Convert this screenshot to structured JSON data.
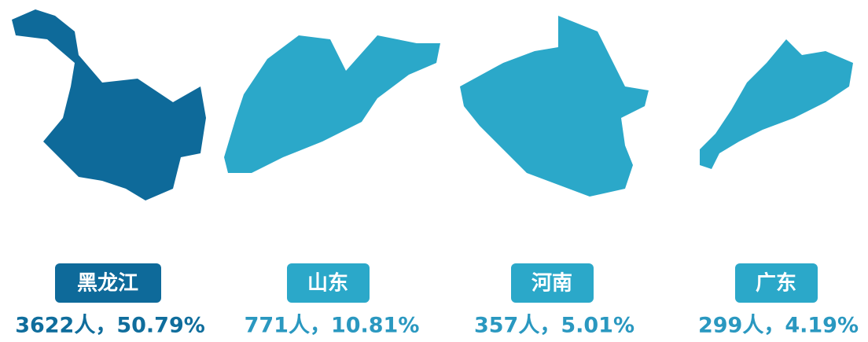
{
  "regions": [
    {
      "name": "黑龙江",
      "caption": "3622人，50.79%"
    },
    {
      "name": "山东",
      "caption": "771人，10.81%"
    },
    {
      "name": "河南",
      "caption": "357人，5.01%"
    },
    {
      "name": "广东",
      "caption": "299人，4.19%"
    }
  ]
}
